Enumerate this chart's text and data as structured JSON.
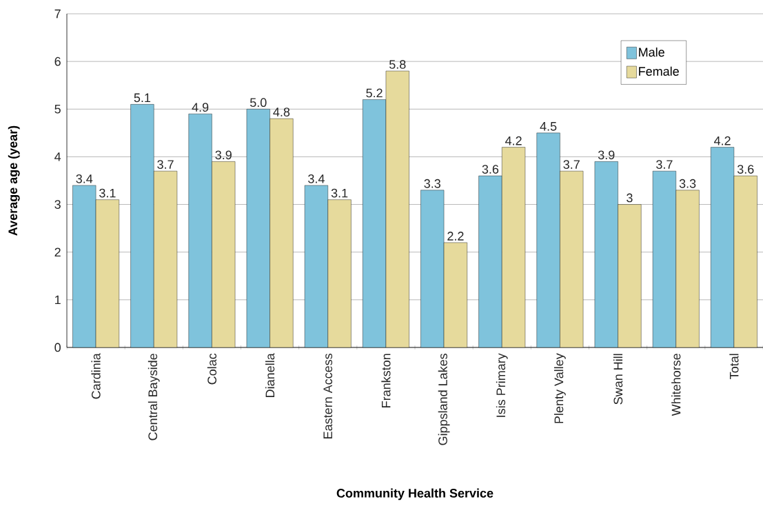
{
  "chart_data": {
    "type": "bar",
    "xlabel": "Community Health Service",
    "ylabel": "Average age (year)",
    "categories": [
      "Cardinia",
      "Central Bayside",
      "Colac",
      "Dianella",
      "Eastern Access",
      "Frankston",
      "Gippsland Lakes",
      "Isis Primary",
      "Plenty Valley",
      "Swan Hill",
      "Whitehorse",
      "Total"
    ],
    "series": [
      {
        "name": "Male",
        "color": "#7fc3dc",
        "values": [
          3.4,
          5.1,
          4.9,
          5.0,
          3.4,
          5.2,
          3.3,
          3.6,
          4.5,
          3.9,
          3.7,
          4.2
        ],
        "value_labels": [
          "3.4",
          "5.1",
          "4.9",
          "5.0",
          "3.4",
          "5.2",
          "3.3",
          "3.6",
          "4.5",
          "3.9",
          "3.7",
          "4.2"
        ]
      },
      {
        "name": "Female",
        "color": "#e6da9c",
        "values": [
          3.1,
          3.7,
          3.9,
          4.8,
          3.1,
          5.8,
          2.2,
          4.2,
          3.7,
          3.0,
          3.3,
          3.6
        ],
        "value_labels": [
          "3.1",
          "3.7",
          "3.9",
          "4.8",
          "3.1",
          "5.8",
          "2.2",
          "4.2",
          "3.7",
          "3",
          "3.3",
          "3.6"
        ]
      }
    ],
    "ylim": [
      0,
      7
    ],
    "yticks": [
      0,
      1,
      2,
      3,
      4,
      5,
      6,
      7
    ],
    "grid": "y",
    "legend": "top right"
  }
}
